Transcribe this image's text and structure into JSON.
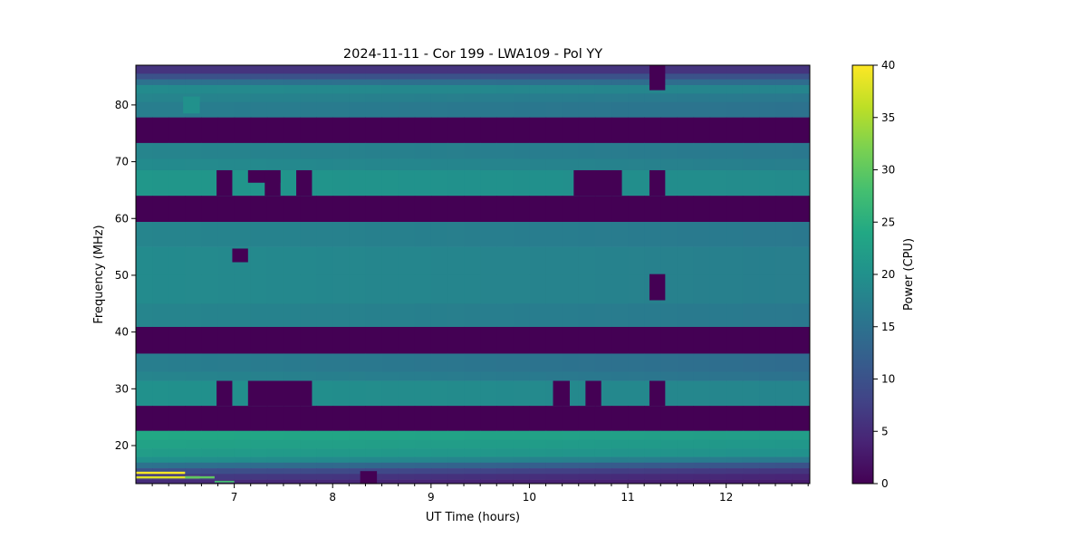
{
  "chart_data": {
    "type": "heatmap",
    "title": "2024-11-11 - Cor 199 - LWA109 - Pol YY",
    "xlabel": "UT Time (hours)",
    "ylabel": "Frequency (MHz)",
    "colorbar_label": "Power (CPU)",
    "colormap": "viridis",
    "xlim": [
      6.0,
      12.85
    ],
    "ylim": [
      13.3,
      87.0
    ],
    "clim": [
      0,
      40
    ],
    "x_ticks": [
      7,
      8,
      9,
      10,
      11,
      12
    ],
    "y_ticks": [
      20,
      30,
      40,
      50,
      60,
      70,
      80
    ],
    "colorbar_ticks": [
      0,
      5,
      10,
      15,
      20,
      25,
      30,
      35,
      40
    ],
    "time_bin_hours": 0.1667,
    "frequency_bands": [
      {
        "fmin": 85.5,
        "fmax": 87.0,
        "start": 6,
        "end": 6
      },
      {
        "fmin": 84.5,
        "fmax": 85.5,
        "start": 10,
        "end": 10
      },
      {
        "fmin": 83.5,
        "fmax": 84.5,
        "start": 15,
        "end": 14
      },
      {
        "fmin": 82.0,
        "fmax": 83.5,
        "start": 19,
        "end": 18
      },
      {
        "fmin": 80.5,
        "fmax": 82.0,
        "start": 18,
        "end": 16
      },
      {
        "fmin": 77.8,
        "fmax": 80.5,
        "start": 17,
        "end": 15
      },
      {
        "fmin": 73.3,
        "fmax": 77.8,
        "start": 0,
        "end": 0
      },
      {
        "fmin": 70.5,
        "fmax": 73.3,
        "start": 18,
        "end": 16
      },
      {
        "fmin": 68.5,
        "fmax": 70.5,
        "start": 19,
        "end": 17
      },
      {
        "fmin": 64.0,
        "fmax": 68.5,
        "start": 21,
        "end": 19
      },
      {
        "fmin": 59.4,
        "fmax": 64.0,
        "start": 0,
        "end": 0
      },
      {
        "fmin": 55.0,
        "fmax": 59.4,
        "start": 18,
        "end": 16
      },
      {
        "fmin": 50.0,
        "fmax": 55.0,
        "start": 19,
        "end": 17
      },
      {
        "fmin": 45.0,
        "fmax": 50.0,
        "start": 19,
        "end": 17
      },
      {
        "fmin": 40.9,
        "fmax": 45.0,
        "start": 18,
        "end": 16
      },
      {
        "fmin": 36.2,
        "fmax": 40.9,
        "start": 0,
        "end": 0
      },
      {
        "fmin": 33.0,
        "fmax": 36.2,
        "start": 17,
        "end": 14
      },
      {
        "fmin": 31.4,
        "fmax": 33.0,
        "start": 18,
        "end": 15
      },
      {
        "fmin": 27.0,
        "fmax": 31.4,
        "start": 20,
        "end": 18
      },
      {
        "fmin": 22.6,
        "fmax": 27.0,
        "start": 0,
        "end": 0
      },
      {
        "fmin": 21.0,
        "fmax": 22.6,
        "start": 24,
        "end": 22
      },
      {
        "fmin": 19.5,
        "fmax": 21.0,
        "start": 23,
        "end": 21
      },
      {
        "fmin": 18.0,
        "fmax": 19.5,
        "start": 22,
        "end": 20
      },
      {
        "fmin": 17.0,
        "fmax": 18.0,
        "start": 20,
        "end": 16
      },
      {
        "fmin": 16.0,
        "fmax": 17.0,
        "start": 15,
        "end": 10
      },
      {
        "fmin": 15.0,
        "fmax": 16.0,
        "start": 10,
        "end": 6
      },
      {
        "fmin": 14.0,
        "fmax": 15.0,
        "start": 7,
        "end": 4
      },
      {
        "fmin": 13.3,
        "fmax": 14.0,
        "start": 5,
        "end": 3
      }
    ],
    "patches": [
      {
        "t0": 6.48,
        "t1": 6.65,
        "fmin": 78.5,
        "fmax": 81.5,
        "value": 20
      },
      {
        "t0": 6.0,
        "t1": 6.5,
        "fmin": 15.0,
        "fmax": 15.4,
        "value": 40
      },
      {
        "t0": 6.0,
        "t1": 6.65,
        "fmin": 14.2,
        "fmax": 14.6,
        "value": 38
      },
      {
        "t0": 6.5,
        "t1": 6.8,
        "fmin": 14.2,
        "fmax": 14.6,
        "value": 30
      },
      {
        "t0": 6.8,
        "t1": 7.0,
        "fmin": 13.5,
        "fmax": 13.8,
        "value": 28
      },
      {
        "t0": 11.22,
        "t1": 11.38,
        "fmin": 82.6,
        "fmax": 87.0,
        "value": 0
      },
      {
        "t0": 6.82,
        "t1": 6.98,
        "fmin": 64.0,
        "fmax": 68.5,
        "value": 0
      },
      {
        "t0": 7.14,
        "t1": 7.47,
        "fmin": 66.3,
        "fmax": 68.5,
        "value": 0
      },
      {
        "t0": 7.31,
        "t1": 7.47,
        "fmin": 64.0,
        "fmax": 68.5,
        "value": 0
      },
      {
        "t0": 7.63,
        "t1": 7.79,
        "fmin": 64.0,
        "fmax": 68.5,
        "value": 0
      },
      {
        "t0": 10.45,
        "t1": 10.94,
        "fmin": 64.0,
        "fmax": 68.5,
        "value": 0
      },
      {
        "t0": 11.22,
        "t1": 11.38,
        "fmin": 64.0,
        "fmax": 68.5,
        "value": 0
      },
      {
        "t0": 6.98,
        "t1": 7.14,
        "fmin": 52.3,
        "fmax": 54.7,
        "value": 0
      },
      {
        "t0": 11.22,
        "t1": 11.38,
        "fmin": 45.6,
        "fmax": 50.2,
        "value": 0
      },
      {
        "t0": 6.82,
        "t1": 6.98,
        "fmin": 27.0,
        "fmax": 31.4,
        "value": 0
      },
      {
        "t0": 7.14,
        "t1": 7.79,
        "fmin": 27.0,
        "fmax": 31.4,
        "value": 0
      },
      {
        "t0": 10.24,
        "t1": 10.41,
        "fmin": 27.0,
        "fmax": 31.4,
        "value": 0
      },
      {
        "t0": 10.57,
        "t1": 10.73,
        "fmin": 27.0,
        "fmax": 31.4,
        "value": 0
      },
      {
        "t0": 11.22,
        "t1": 11.38,
        "fmin": 27.0,
        "fmax": 31.4,
        "value": 0
      },
      {
        "t0": 8.28,
        "t1": 8.45,
        "fmin": 13.3,
        "fmax": 15.5,
        "value": 0
      }
    ]
  }
}
